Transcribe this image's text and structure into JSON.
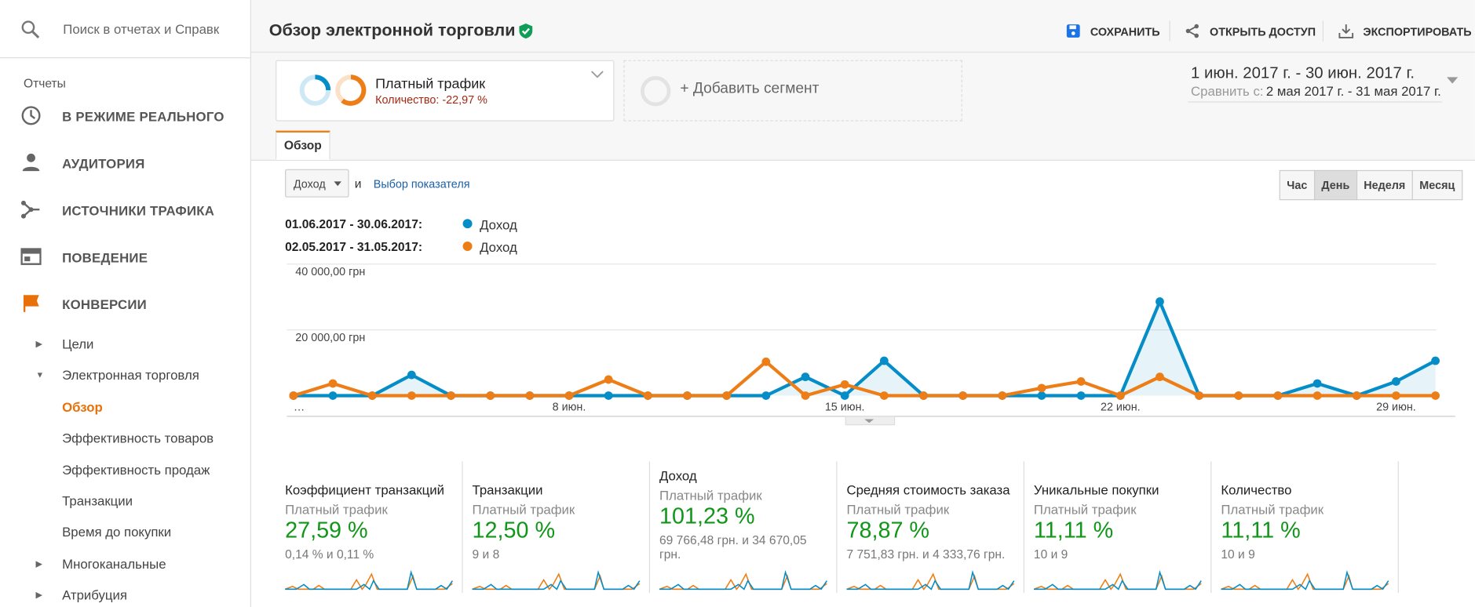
{
  "sidebar": {
    "search": "Поиск в отчетах и Справк",
    "section": "Отчеты",
    "items": [
      "В РЕЖИМЕ РЕАЛЬНОГО",
      "АУДИТОРИЯ",
      "ИСТОЧНИКИ ТРАФИКА",
      "ПОВЕДЕНИЕ",
      "КОНВЕРСИИ"
    ],
    "subitems": [
      "Цели",
      "Электронная торговля",
      "Обзор",
      "Эффективность товаров",
      "Эффективность продаж",
      "Транзакции",
      "Время до покупки",
      "Многоканальные",
      "Атрибуция"
    ]
  },
  "header": {
    "title": "Обзор электронной торговли",
    "actions": [
      "СОХРАНИТЬ",
      "ОТКРЫТЬ ДОСТУП",
      "ЭКСПОРТИРОВАТЬ"
    ]
  },
  "segments": {
    "active": {
      "name": "Платный трафик",
      "note": "Количество: -22,97 %"
    },
    "add": "+ Добавить сегмент"
  },
  "date_range": {
    "range": "1 июн. 2017 г. - 30 июн. 2017 г.",
    "compare_label": "Сравнить с:",
    "compare": "2 мая 2017 г. - 31 мая 2017 г."
  },
  "tab": "Обзор",
  "controls": {
    "metric": "Доход",
    "and": "и",
    "pick": "Выбор показателя",
    "granularity": [
      "Час",
      "День",
      "Неделя",
      "Месяц"
    ]
  },
  "chart_data": {
    "type": "line",
    "categories": [
      "…",
      null,
      null,
      null,
      null,
      null,
      null,
      "8 июн.",
      null,
      null,
      null,
      null,
      null,
      null,
      "15 июн.",
      null,
      null,
      null,
      null,
      null,
      null,
      "22 июн.",
      null,
      null,
      null,
      null,
      null,
      null,
      "29 июн.",
      null
    ],
    "series": [
      {
        "name": "Доход",
        "period": "01.06.2017 - 30.06.2017:",
        "color": "#058dc7",
        "values": [
          0,
          0,
          0,
          6300,
          0,
          0,
          0,
          0,
          0,
          0,
          0,
          0,
          0,
          5700,
          0,
          10600,
          0,
          0,
          0,
          0,
          0,
          0,
          28600,
          0,
          0,
          0,
          3700,
          0,
          4300,
          10600
        ]
      },
      {
        "name": "Доход",
        "period": "02.05.2017 - 31.05.2017:",
        "color": "#ed7e17",
        "values": [
          0,
          3700,
          0,
          0,
          0,
          0,
          0,
          0,
          4900,
          0,
          0,
          0,
          10300,
          0,
          3400,
          0,
          0,
          0,
          0,
          2300,
          4300,
          0,
          5700,
          0,
          0,
          0,
          0,
          0,
          0,
          0
        ]
      }
    ],
    "ylim": [
      0,
      40000
    ],
    "yticks": [
      {
        "value": 20000,
        "label": "20 000,00 грн"
      },
      {
        "value": 40000,
        "label": "40 000,00 грн"
      }
    ],
    "grid": true
  },
  "scorecards": [
    {
      "title": "Коэффициент транзакций",
      "segment": "Платный трафик",
      "value": "27,59 %",
      "detail": "0,14 % и 0,11 %"
    },
    {
      "title": "Транзакции",
      "segment": "Платный трафик",
      "value": "12,50 %",
      "detail": "9 и 8"
    },
    {
      "title": "Доход",
      "segment": "Платный трафик",
      "value": "101,23 %",
      "detail": "69 766,48 грн. и 34 670,05 грн."
    },
    {
      "title": "Средняя стоимость заказа",
      "segment": "Платный трафик",
      "value": "78,87 %",
      "detail": "7 751,83 грн. и 4 333,76 грн."
    },
    {
      "title": "Уникальные покупки",
      "segment": "Платный трафик",
      "value": "11,11 %",
      "detail": "10 и 9"
    },
    {
      "title": "Количество",
      "segment": "Платный трафик",
      "value": "11,11 %",
      "detail": "10 и 9"
    }
  ]
}
